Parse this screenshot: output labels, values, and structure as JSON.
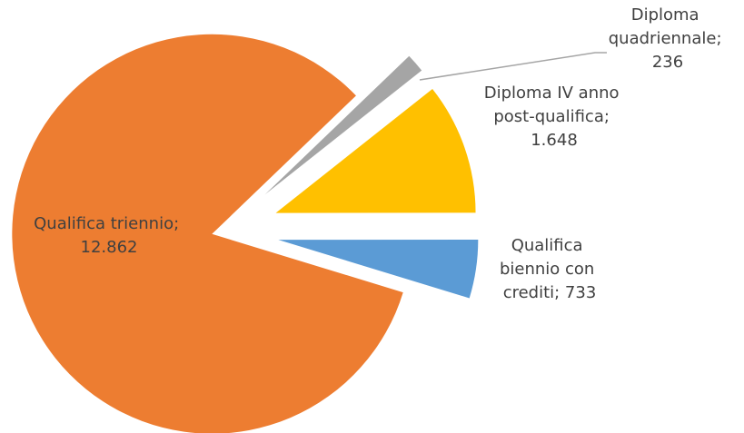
{
  "chart_data": {
    "type": "pie",
    "values": [
      12862,
      236,
      1648,
      733
    ],
    "value_labels": [
      "Qualifica triennio; 12.862",
      "Diploma quadriennale; 236",
      "Diploma IV anno post-qualifica; 1.648",
      "Qualifica biennio con crediti; 733"
    ],
    "colors": [
      "#ED7D31",
      "#A5A5A5",
      "#FFC000",
      "#5B9BD5"
    ]
  }
}
